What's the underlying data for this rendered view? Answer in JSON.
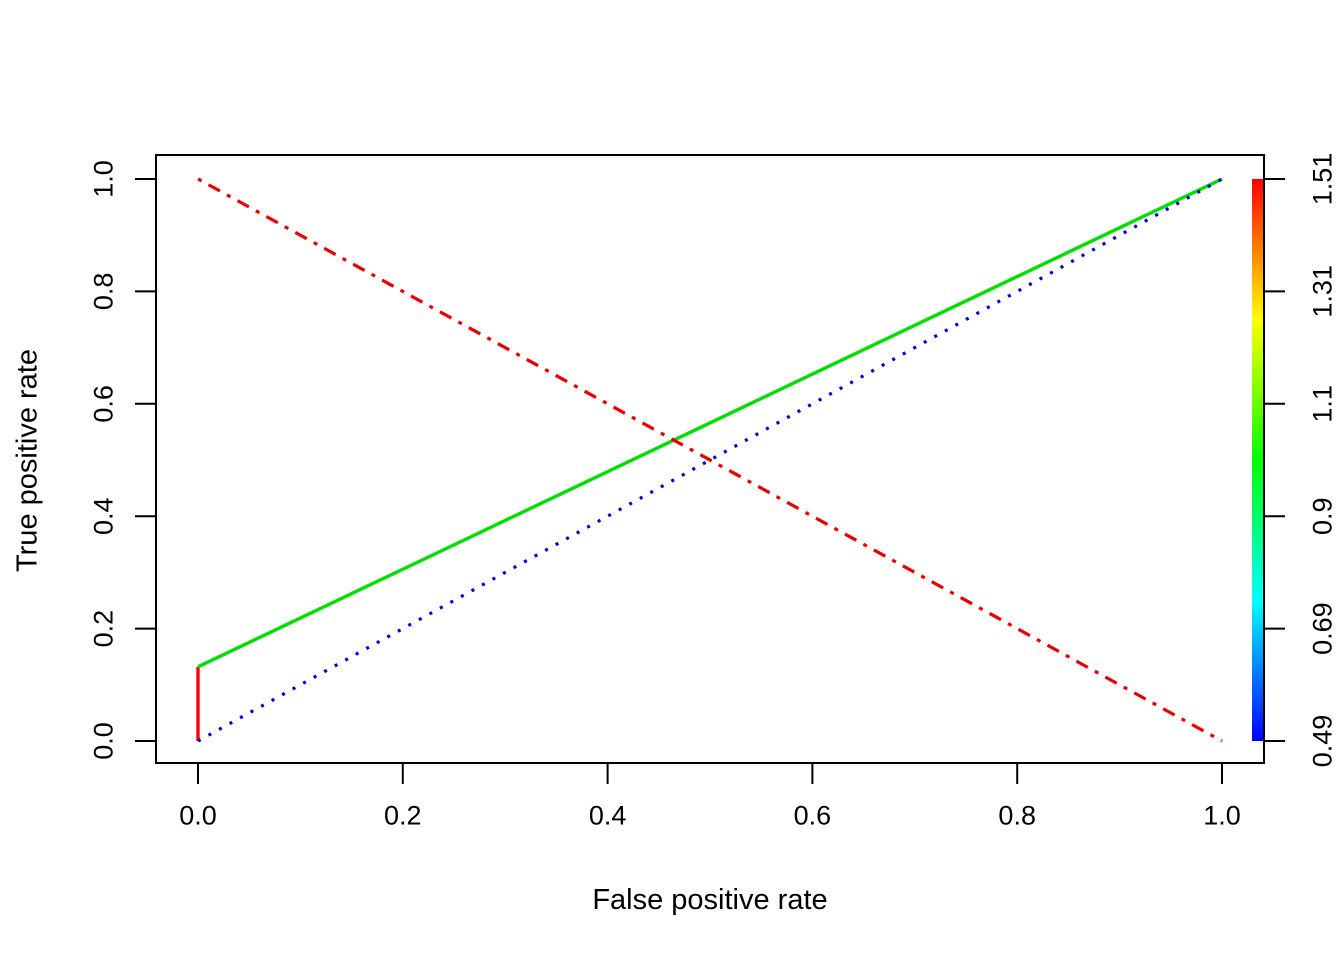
{
  "figure": {
    "background": "#ffffff",
    "kind": "R base-graphics ROC plot with colorized cutoff bar"
  },
  "chart_data": {
    "type": "line",
    "title": "",
    "xlabel": "False positive rate",
    "ylabel": "True positive rate",
    "xlim": [
      0,
      1
    ],
    "ylim": [
      0,
      1
    ],
    "grid": false,
    "legend": "none",
    "x_tick_values": [
      0,
      0.2,
      0.4,
      0.6,
      0.8,
      1.0
    ],
    "x_tick_labels": [
      "0.0",
      "0.2",
      "0.4",
      "0.6",
      "0.8",
      "1.0"
    ],
    "y_tick_values": [
      0,
      0.2,
      0.4,
      0.6,
      0.8,
      1.0
    ],
    "y_tick_labels": [
      "0.0",
      "0.2",
      "0.4",
      "0.6",
      "0.8",
      "1.0"
    ],
    "series": [
      {
        "name": "roc-curve-high-cutoff-segment",
        "color": "#ff0000",
        "style": "solid",
        "width": 3.4,
        "points": [
          [
            0,
            0
          ],
          [
            0,
            0.132
          ]
        ]
      },
      {
        "name": "roc-curve",
        "color": "#00e100",
        "style": "solid",
        "width": 3.4,
        "points": [
          [
            0,
            0.132
          ],
          [
            0.25,
            0.349
          ],
          [
            0.5,
            0.566
          ],
          [
            0.75,
            0.783
          ],
          [
            1,
            1
          ]
        ]
      },
      {
        "name": "chance-diagonal",
        "color": "#0000e0",
        "style": "dotted",
        "width": 3.2,
        "points": [
          [
            0,
            0
          ],
          [
            1,
            1
          ]
        ]
      },
      {
        "name": "inverse-diagonal",
        "color": "#ee0000",
        "style": "dotdash",
        "width": 3.2,
        "points": [
          [
            0,
            1
          ],
          [
            1,
            0
          ]
        ]
      }
    ],
    "colorbar": {
      "position": "right-edge-of-plot",
      "tick_labels_top_to_bottom": [
        "1.51",
        "1.31",
        "1.1",
        "0.9",
        "0.69",
        "0.49"
      ],
      "tick_values_top_to_bottom": [
        1.51,
        1.31,
        1.1,
        0.9,
        0.69,
        0.49
      ],
      "gradient_top_to_bottom": [
        "#ff0000",
        "#ff8000",
        "#ffff00",
        "#80ff00",
        "#00ff00",
        "#00ff80",
        "#00ffff",
        "#0080ff",
        "#0000ff"
      ]
    },
    "axis_color": "#000000",
    "tick_label_font_px": 27,
    "axis_title_font_px": 29
  }
}
